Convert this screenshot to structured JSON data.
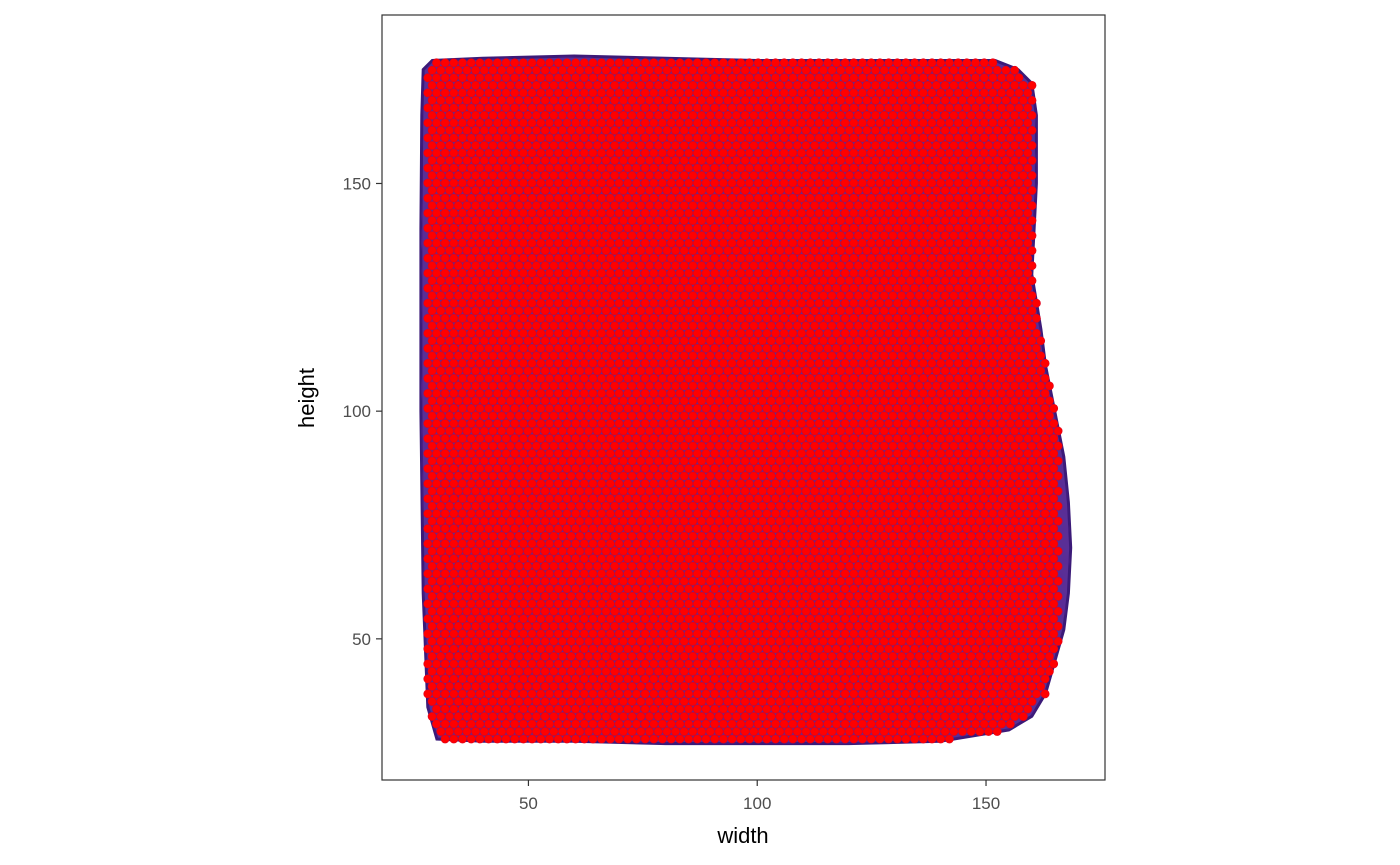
{
  "chart_data": {
    "type": "scatter",
    "title": "",
    "xlabel": "width",
    "ylabel": "height",
    "xlim": [
      18,
      176
    ],
    "ylim": [
      19,
      187
    ],
    "x_ticks": [
      50,
      100,
      150
    ],
    "y_ticks": [
      50,
      100,
      150
    ],
    "x_tick_labels": [
      "50",
      "100",
      "150"
    ],
    "y_tick_labels": [
      "50",
      "100",
      "150"
    ],
    "grid": false,
    "legend": "none",
    "background_image": {
      "description": "tissue section",
      "extent_x": [
        27,
        168
      ],
      "extent_y": [
        27,
        178
      ]
    },
    "series": [
      {
        "marker": "circle",
        "color": "#ff0000",
        "layout": "hexagonal grid of spots",
        "x_range": [
          28,
          166
        ],
        "y_range": [
          28,
          178
        ],
        "spacing_x": 1.9,
        "spacing_y": 1.65,
        "approx_count": 4990
      }
    ],
    "colors": {
      "spots": "#ff0000",
      "spot_outline": "#e0001c",
      "tissue": "#5a2f96",
      "tissue_dark": "#2a0f5a",
      "panel_border": "#333333"
    }
  }
}
